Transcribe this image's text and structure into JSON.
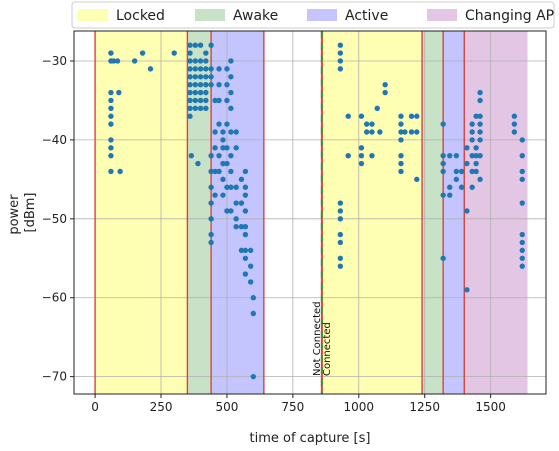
{
  "chart_data": {
    "type": "scatter",
    "title": "",
    "xlabel": "time of capture [s]",
    "ylabel_lines": [
      "power",
      "[dBm]"
    ],
    "xlim": [
      -80,
      1710
    ],
    "ylim": [
      -72.2,
      -26.2
    ],
    "xticks": [
      0,
      250,
      500,
      750,
      1000,
      1250,
      1500
    ],
    "yticks": [
      -70,
      -60,
      -50,
      -40,
      -30
    ],
    "grid": true,
    "legend_placement": "top",
    "legend": [
      {
        "label": "Locked",
        "color": "#ffffb3"
      },
      {
        "label": "Awake",
        "color": "#c7e2c7"
      },
      {
        "label": "Active",
        "color": "#c4c4ff"
      },
      {
        "label": "Changing AP",
        "color": "#e3c6e3"
      }
    ],
    "regions": [
      {
        "state": "Locked",
        "x0": 0,
        "x1": 350,
        "color": "#ffffb3"
      },
      {
        "state": "Awake",
        "x0": 350,
        "x1": 440,
        "color": "#c7e2c7"
      },
      {
        "state": "Active",
        "x0": 440,
        "x1": 640,
        "color": "#c4c4ff"
      },
      {
        "state": "Locked",
        "x0": 860,
        "x1": 1240,
        "color": "#ffffb3"
      },
      {
        "state": "Awake",
        "x0": 1240,
        "x1": 1320,
        "color": "#c7e2c7"
      },
      {
        "state": "Active",
        "x0": 1320,
        "x1": 1400,
        "color": "#c4c4ff"
      },
      {
        "state": "Changing AP",
        "x0": 1400,
        "x1": 1640,
        "color": "#e3c6e3"
      }
    ],
    "boundary_lines": [
      0,
      350,
      440,
      640,
      1240,
      1320,
      1400
    ],
    "boundary_color": "#e0403a",
    "connection_line": {
      "x": 860,
      "labels": [
        "Not Connected",
        "Connected"
      ],
      "colors": [
        "#e0403a",
        "#2e9a2e"
      ]
    },
    "point_color": "#1f77b4",
    "series": [
      {
        "points": [
          [
            60,
            -29
          ],
          [
            60,
            -30
          ],
          [
            60,
            -34
          ],
          [
            60,
            -35
          ],
          [
            60,
            -36
          ],
          [
            60,
            -37
          ],
          [
            60,
            -38
          ],
          [
            60,
            -40
          ],
          [
            60,
            -41
          ],
          [
            60,
            -42
          ],
          [
            60,
            -44
          ],
          [
            70,
            -30
          ],
          [
            85,
            -30
          ],
          [
            90,
            -34
          ],
          [
            95,
            -44
          ],
          [
            150,
            -30
          ],
          [
            180,
            -29
          ],
          [
            210,
            -31
          ],
          [
            300,
            -29
          ],
          [
            360,
            -28
          ],
          [
            360,
            -29
          ],
          [
            360,
            -30
          ],
          [
            360,
            -31
          ],
          [
            360,
            -32
          ],
          [
            360,
            -33
          ],
          [
            360,
            -34
          ],
          [
            360,
            -35
          ],
          [
            360,
            -36
          ],
          [
            360,
            -37
          ],
          [
            365,
            -42
          ],
          [
            380,
            -28
          ],
          [
            380,
            -30
          ],
          [
            380,
            -31
          ],
          [
            380,
            -32
          ],
          [
            380,
            -33
          ],
          [
            380,
            -34
          ],
          [
            380,
            -35
          ],
          [
            380,
            -36
          ],
          [
            390,
            -43
          ],
          [
            400,
            -28
          ],
          [
            400,
            -30
          ],
          [
            400,
            -31
          ],
          [
            400,
            -32
          ],
          [
            400,
            -33
          ],
          [
            400,
            -34
          ],
          [
            400,
            -35
          ],
          [
            400,
            -36
          ],
          [
            420,
            -29
          ],
          [
            420,
            -30
          ],
          [
            420,
            -31
          ],
          [
            420,
            -32
          ],
          [
            420,
            -33
          ],
          [
            420,
            -34
          ],
          [
            420,
            -35
          ],
          [
            420,
            -36
          ],
          [
            440,
            -28
          ],
          [
            440,
            -31
          ],
          [
            440,
            -32
          ],
          [
            440,
            -33
          ],
          [
            440,
            -42
          ],
          [
            440,
            -44
          ],
          [
            440,
            -46
          ],
          [
            440,
            -48
          ],
          [
            440,
            -50
          ],
          [
            440,
            -52
          ],
          [
            440,
            -53
          ],
          [
            455,
            -35
          ],
          [
            455,
            -39
          ],
          [
            455,
            -41
          ],
          [
            455,
            -44
          ],
          [
            455,
            -47
          ],
          [
            470,
            -31
          ],
          [
            470,
            -33
          ],
          [
            470,
            -35
          ],
          [
            470,
            -38
          ],
          [
            470,
            -42
          ],
          [
            470,
            -44
          ],
          [
            485,
            -39
          ],
          [
            485,
            -40
          ],
          [
            485,
            -41
          ],
          [
            485,
            -43
          ],
          [
            485,
            -45
          ],
          [
            485,
            -47
          ],
          [
            500,
            -31
          ],
          [
            500,
            -33
          ],
          [
            500,
            -35
          ],
          [
            500,
            -38
          ],
          [
            500,
            -41
          ],
          [
            500,
            -43
          ],
          [
            500,
            -46
          ],
          [
            500,
            -49
          ],
          [
            515,
            -30
          ],
          [
            515,
            -32
          ],
          [
            515,
            -34
          ],
          [
            515,
            -36
          ],
          [
            515,
            -39
          ],
          [
            515,
            -42
          ],
          [
            515,
            -44
          ],
          [
            515,
            -46
          ],
          [
            515,
            -49
          ],
          [
            535,
            -39
          ],
          [
            535,
            -41
          ],
          [
            535,
            -46
          ],
          [
            535,
            -48
          ],
          [
            535,
            -50
          ],
          [
            535,
            -51
          ],
          [
            555,
            -45
          ],
          [
            555,
            -48
          ],
          [
            555,
            -51
          ],
          [
            555,
            -54
          ],
          [
            570,
            -44
          ],
          [
            570,
            -46
          ],
          [
            570,
            -47
          ],
          [
            570,
            -49
          ],
          [
            570,
            -51
          ],
          [
            570,
            -52
          ],
          [
            570,
            -54
          ],
          [
            570,
            -55
          ],
          [
            570,
            -57
          ],
          [
            590,
            -54
          ],
          [
            590,
            -56
          ],
          [
            590,
            -58
          ],
          [
            600,
            -60
          ],
          [
            600,
            -62
          ],
          [
            600,
            -70
          ],
          [
            930,
            -28
          ],
          [
            930,
            -29
          ],
          [
            930,
            -30
          ],
          [
            930,
            -31
          ],
          [
            930,
            -48
          ],
          [
            930,
            -49
          ],
          [
            930,
            -50
          ],
          [
            930,
            -52
          ],
          [
            930,
            -53
          ],
          [
            930,
            -55
          ],
          [
            930,
            -56
          ],
          [
            960,
            -37
          ],
          [
            960,
            -42
          ],
          [
            1010,
            -37
          ],
          [
            1010,
            -41
          ],
          [
            1010,
            -42
          ],
          [
            1010,
            -43
          ],
          [
            1030,
            -38
          ],
          [
            1030,
            -39
          ],
          [
            1050,
            -38
          ],
          [
            1050,
            -39
          ],
          [
            1050,
            -42
          ],
          [
            1070,
            -36
          ],
          [
            1080,
            -39
          ],
          [
            1100,
            -33
          ],
          [
            1100,
            -34
          ],
          [
            1160,
            -37
          ],
          [
            1160,
            -38
          ],
          [
            1160,
            -39
          ],
          [
            1160,
            -40
          ],
          [
            1160,
            -42
          ],
          [
            1160,
            -43
          ],
          [
            1160,
            -44
          ],
          [
            1175,
            -39
          ],
          [
            1200,
            -37
          ],
          [
            1200,
            -39
          ],
          [
            1220,
            -37
          ],
          [
            1220,
            -39
          ],
          [
            1220,
            -45
          ],
          [
            1320,
            -38
          ],
          [
            1320,
            -42
          ],
          [
            1320,
            -43
          ],
          [
            1320,
            -44
          ],
          [
            1320,
            -47
          ],
          [
            1320,
            -55
          ],
          [
            1345,
            -42
          ],
          [
            1345,
            -46
          ],
          [
            1345,
            -47
          ],
          [
            1370,
            -42
          ],
          [
            1370,
            -44
          ],
          [
            1370,
            -45
          ],
          [
            1390,
            -44
          ],
          [
            1390,
            -46
          ],
          [
            1410,
            -41
          ],
          [
            1410,
            -43
          ],
          [
            1410,
            -49
          ],
          [
            1410,
            -59
          ],
          [
            1430,
            -38
          ],
          [
            1430,
            -39
          ],
          [
            1430,
            -40
          ],
          [
            1430,
            -42
          ],
          [
            1430,
            -44
          ],
          [
            1430,
            -46
          ],
          [
            1445,
            -37
          ],
          [
            1445,
            -41
          ],
          [
            1445,
            -42
          ],
          [
            1445,
            -43
          ],
          [
            1445,
            -44
          ],
          [
            1460,
            -34
          ],
          [
            1460,
            -35
          ],
          [
            1460,
            -37
          ],
          [
            1460,
            -38
          ],
          [
            1460,
            -39
          ],
          [
            1460,
            -40
          ],
          [
            1460,
            -42
          ],
          [
            1460,
            -45
          ],
          [
            1590,
            -37
          ],
          [
            1590,
            -38
          ],
          [
            1590,
            -39
          ],
          [
            1620,
            -40
          ],
          [
            1620,
            -42
          ],
          [
            1620,
            -44
          ],
          [
            1620,
            -45
          ],
          [
            1620,
            -48
          ],
          [
            1620,
            -52
          ],
          [
            1620,
            -53
          ],
          [
            1620,
            -54
          ],
          [
            1620,
            -55
          ],
          [
            1620,
            -56
          ]
        ]
      }
    ]
  }
}
